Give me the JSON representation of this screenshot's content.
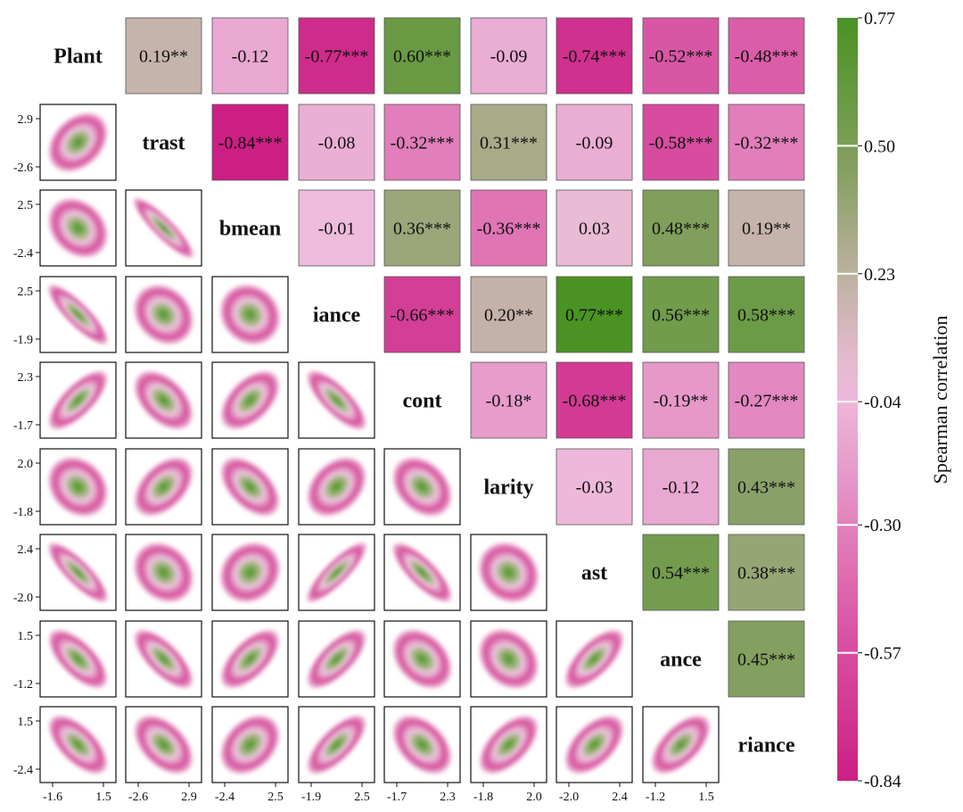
{
  "chart_data": {
    "type": "heatmap",
    "title": "",
    "variables": [
      "Plant",
      "trast",
      "bmean",
      "iance",
      "cont",
      "larity",
      "ast",
      "ance",
      "riance"
    ],
    "upper_triangle_correlations": [
      [
        "",
        "0.19**",
        "-0.12",
        "-0.77***",
        "0.60***",
        "-0.09",
        "-0.74***",
        "-0.52***",
        "-0.48***"
      ],
      [
        "",
        "",
        "-0.84***",
        "-0.08",
        "-0.32***",
        "0.31***",
        "-0.09",
        "-0.58***",
        "-0.32***"
      ],
      [
        "",
        "",
        "",
        "-0.01",
        "0.36***",
        "-0.36***",
        "0.03",
        "0.48***",
        "0.19**"
      ],
      [
        "",
        "",
        "",
        "",
        "-0.66***",
        "0.20**",
        "0.77***",
        "0.56***",
        "0.58***"
      ],
      [
        "",
        "",
        "",
        "",
        "",
        "-0.18*",
        "-0.68***",
        "-0.19**",
        "-0.27***"
      ],
      [
        "",
        "",
        "",
        "",
        "",
        "",
        "-0.03",
        "-0.12",
        "0.43***"
      ],
      [
        "",
        "",
        "",
        "",
        "",
        "",
        "",
        "0.54***",
        "0.38***"
      ],
      [
        "",
        "",
        "",
        "",
        "",
        "",
        "",
        "",
        "0.45***"
      ],
      [
        "",
        "",
        "",
        "",
        "",
        "",
        "",
        "",
        ""
      ]
    ],
    "lower_triangle": "2D density plots for each variable pair",
    "row_axis_ticks": [
      [
        "2.9",
        "-2.6"
      ],
      [
        "2.5",
        "-2.4"
      ],
      [
        "2.5",
        "-1.9"
      ],
      [
        "2.3",
        "-1.7"
      ],
      [
        "2.0",
        "-1.8"
      ],
      [
        "2.4",
        "-2.0"
      ],
      [
        "1.5",
        "-1.2"
      ],
      [
        "1.5",
        "-2.4"
      ]
    ],
    "column_axis_ticks": [
      [
        "-1.6",
        "1.5"
      ],
      [
        "-2.6",
        "2.9"
      ],
      [
        "-2.4",
        "2.5"
      ],
      [
        "-1.9",
        "2.5"
      ],
      [
        "-1.7",
        "2.3"
      ],
      [
        "-1.8",
        "2.0"
      ],
      [
        "-2.0",
        "2.4"
      ],
      [
        "-1.2",
        "1.5"
      ]
    ],
    "colorbar": {
      "label": "Spearman correlation",
      "min": -0.84,
      "max": 0.77,
      "ticks": [
        "0.77",
        "0.50",
        "0.23",
        "-0.04",
        "-0.30",
        "-0.57",
        "-0.84"
      ],
      "tick_values": [
        0.77,
        0.5,
        0.23,
        -0.04,
        -0.3,
        -0.57,
        -0.84
      ]
    },
    "colors": {
      "low": "#cc1f84",
      "mid": "#f0bedc",
      "neutral": "#c4b2a8",
      "high": "#4a9323"
    }
  }
}
